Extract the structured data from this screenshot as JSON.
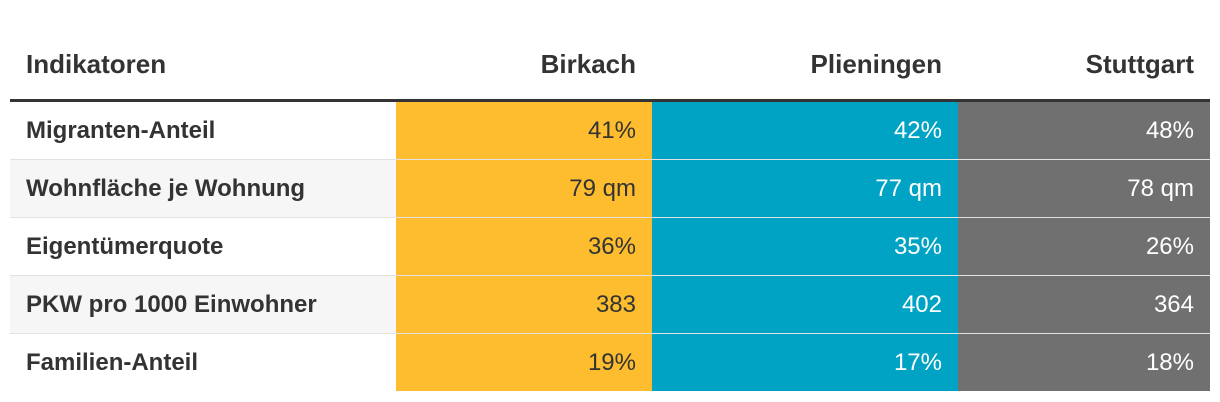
{
  "chart_data": {
    "type": "table",
    "header_label": "Indikatoren",
    "columns": [
      {
        "name": "Birkach",
        "color": "#fdbd2f"
      },
      {
        "name": "Plieningen",
        "color": "#00a3c3"
      },
      {
        "name": "Stuttgart",
        "color": "#707070"
      }
    ],
    "rows": [
      {
        "label": "Migranten-Anteil",
        "values": [
          "41%",
          "42%",
          "48%"
        ]
      },
      {
        "label": "Wohnfläche je Wohnung",
        "values": [
          "79 qm",
          "77 qm",
          "78 qm"
        ]
      },
      {
        "label": "Eigentümerquote",
        "values": [
          "36%",
          "35%",
          "26%"
        ]
      },
      {
        "label": "PKW pro 1000 Einwohner",
        "values": [
          "383",
          "402",
          "364"
        ]
      },
      {
        "label": "Familien-Anteil",
        "values": [
          "19%",
          "17%",
          "18%"
        ]
      }
    ]
  }
}
